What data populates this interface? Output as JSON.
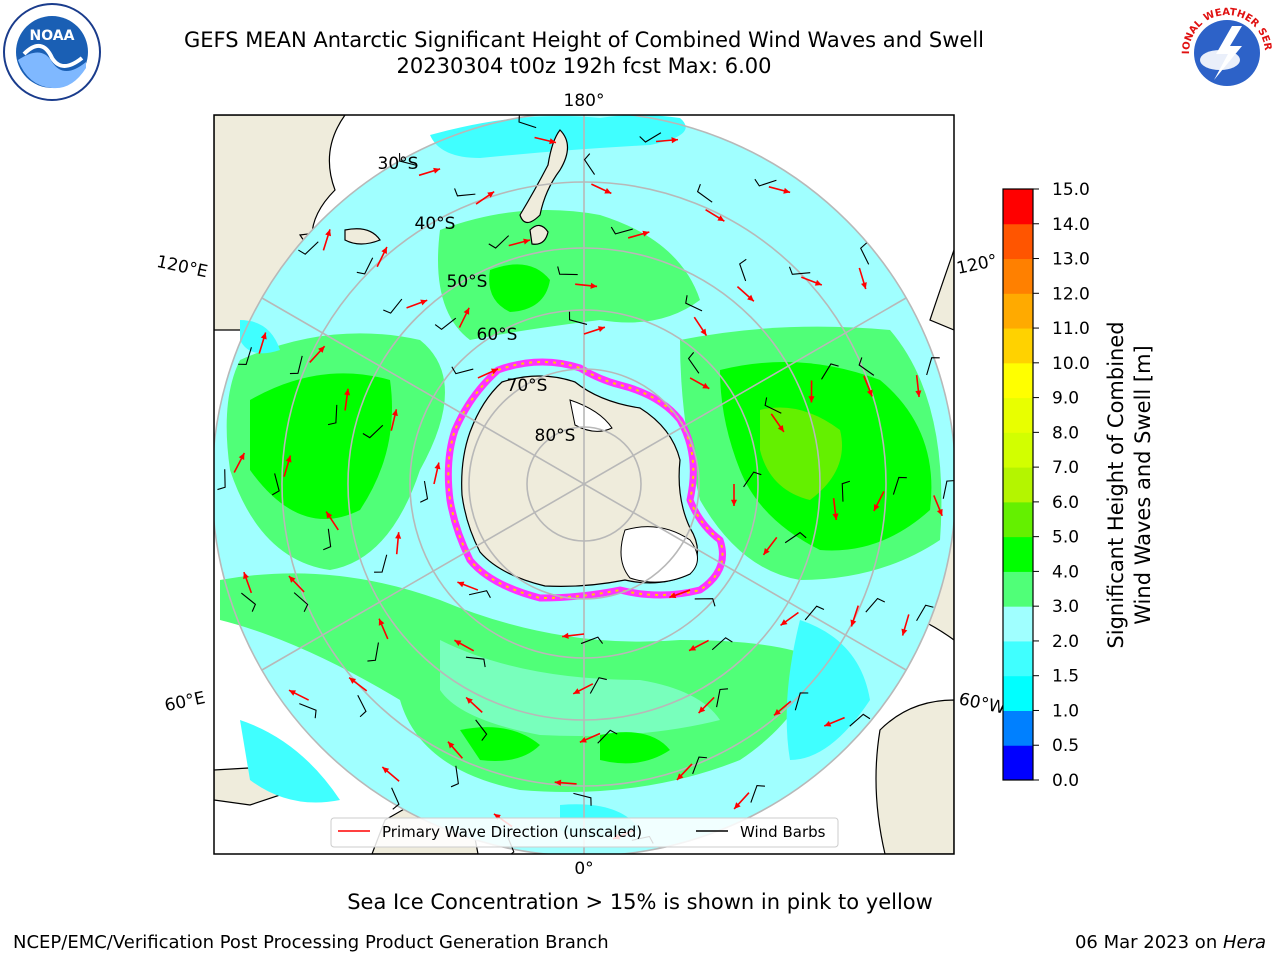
{
  "title_line1": "GEFS MEAN Antarctic Significant Height of Combined Wind Waves and Swell",
  "title_line2": "20230304 t00z 192h fcst   Max: 6.00",
  "logos": {
    "left": "NOAA",
    "right": "NATIONAL WEATHER SERVICE"
  },
  "map": {
    "projection": "south-polar-stereographic",
    "longitude_labels": {
      "top": "180°",
      "bottom": "0°",
      "upper_left": "120°E",
      "lower_left": "60°E",
      "upper_right": "120°",
      "lower_right": "60°W"
    },
    "latitude_labels": [
      "30°S",
      "40°S",
      "50°S",
      "60°S",
      "70°S",
      "80°S"
    ],
    "legend": {
      "primary_wave_direction": "Primary Wave Direction (unscaled)",
      "wind_barbs": "Wind Barbs"
    },
    "colors": {
      "land": "#efecdc",
      "ice_shelf": "#ffffff",
      "sea_ice_edge": "#ff33ff",
      "arrow": "#ff0000",
      "barb": "#000000",
      "grid": "#b8b8b8"
    }
  },
  "colorbar": {
    "label_line1": "Significant Height of Combined",
    "label_line2": "Wind Waves and Swell [m]",
    "ticks": [
      "0.0",
      "0.5",
      "1.0",
      "1.5",
      "2.0",
      "3.0",
      "4.0",
      "5.0",
      "6.0",
      "7.0",
      "8.0",
      "9.0",
      "10.0",
      "11.0",
      "12.0",
      "13.0",
      "14.0",
      "15.0"
    ],
    "colors": [
      "#0000ff",
      "#0080ff",
      "#00ffff",
      "#40ffff",
      "#a0ffff",
      "#50ff78",
      "#00ff00",
      "#64f000",
      "#b4f500",
      "#d2ff00",
      "#e8ff00",
      "#ffff00",
      "#ffd200",
      "#ffaa00",
      "#ff8000",
      "#ff5500",
      "#ff0000"
    ]
  },
  "footer": {
    "note": "Sea Ice Concentration > 15% is shown in pink to yellow",
    "left": "NCEP/EMC/Verification Post Processing Product Generation Branch",
    "right_prefix": "06 Mar 2023 on ",
    "right_machine": "Hera"
  }
}
